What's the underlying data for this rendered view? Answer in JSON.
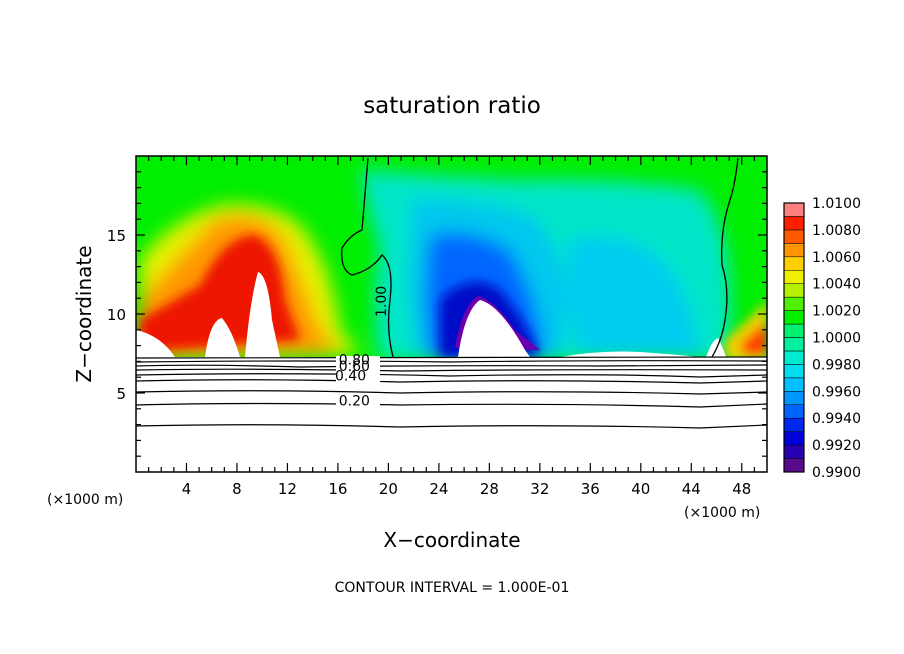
{
  "chart_data": {
    "type": "heatmap",
    "title": "saturation ratio",
    "xlabel": "X−coordinate",
    "ylabel": "Z−coordinate",
    "x_unit_left": "(×1000 m)",
    "x_unit_right": "(×1000 m)",
    "footer": "CONTOUR INTERVAL = 1.000E-01",
    "xlim": [
      0,
      50
    ],
    "ylim": [
      0,
      20
    ],
    "x_ticks": [
      {
        "value": 4,
        "label": "4"
      },
      {
        "value": 8,
        "label": "8"
      },
      {
        "value": 12,
        "label": "12"
      },
      {
        "value": 16,
        "label": "16"
      },
      {
        "value": 20,
        "label": "20"
      },
      {
        "value": 24,
        "label": "24"
      },
      {
        "value": 28,
        "label": "28"
      },
      {
        "value": 32,
        "label": "32"
      },
      {
        "value": 36,
        "label": "36"
      },
      {
        "value": 40,
        "label": "40"
      },
      {
        "value": 44,
        "label": "44"
      },
      {
        "value": 48,
        "label": "48"
      }
    ],
    "y_ticks": [
      {
        "value": 5,
        "label": "5"
      },
      {
        "value": 10,
        "label": "10"
      },
      {
        "value": 15,
        "label": "15"
      }
    ],
    "colorbar": {
      "min": 0.99,
      "max": 1.01,
      "labels": [
        "1.0100",
        "1.0080",
        "1.0060",
        "1.0040",
        "1.0020",
        "1.0000",
        "0.9980",
        "0.9960",
        "0.9940",
        "0.9920",
        "0.9900"
      ]
    },
    "contour_labels": [
      {
        "text": "1.00",
        "x": 19.8,
        "z": 10.8
      },
      {
        "text": "0.80",
        "x": 17.3,
        "z": 6.8
      },
      {
        "text": "0.60",
        "x": 17.3,
        "z": 6.4
      },
      {
        "text": "0.40",
        "x": 17.0,
        "z": 5.8
      },
      {
        "text": "0.20",
        "x": 17.3,
        "z": 4.2
      }
    ],
    "contour_levels_lower": [
      0.2,
      0.4,
      0.6,
      0.8,
      1.0
    ],
    "features": [
      {
        "name": "supersaturated plume",
        "x_center": 9.5,
        "z_top": 17.0,
        "peak_value": 1.008
      },
      {
        "name": "subsaturated core",
        "x_center": 27.0,
        "z_top": 16.5,
        "min_value": 0.99
      },
      {
        "name": "supersaturated edge",
        "x_center": 50.0,
        "z_top": 10.0,
        "peak_value": 1.006
      }
    ]
  }
}
